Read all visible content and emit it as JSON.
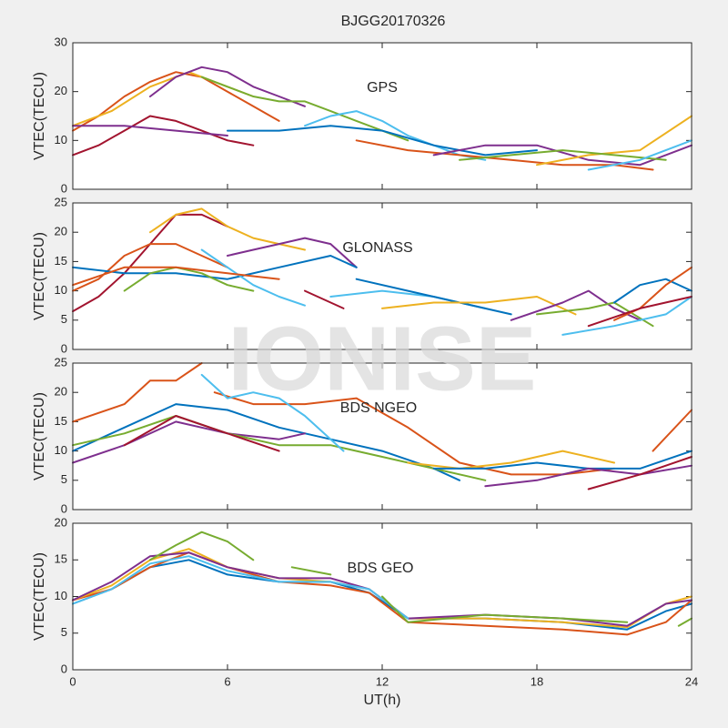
{
  "title": "BJGG20170326",
  "watermark": "IONISE",
  "chart_data": [
    {
      "type": "line",
      "annotation": "GPS",
      "ylabel": "VTEC(TECU)",
      "xlim": [
        0,
        24
      ],
      "xticks": [
        0,
        6,
        12,
        18,
        24
      ],
      "xtick_labels": false,
      "ylim": [
        0,
        30
      ],
      "yticks": [
        0,
        10,
        20,
        30
      ],
      "series": [
        {
          "color": "#D95319",
          "x": [
            0,
            1,
            2,
            3,
            4,
            5,
            6,
            7,
            8
          ],
          "values": [
            12,
            15,
            19,
            22,
            24,
            23,
            20,
            17,
            14
          ]
        },
        {
          "color": "#EDB120",
          "x": [
            0,
            1.5,
            3,
            4.5,
            5.5,
            7
          ],
          "values": [
            13,
            16,
            21,
            24,
            22,
            19
          ]
        },
        {
          "color": "#7E2F8E",
          "x": [
            3,
            4,
            5,
            6,
            7,
            8,
            9
          ],
          "values": [
            19,
            23,
            25,
            24,
            21,
            19,
            17
          ]
        },
        {
          "color": "#77AC30",
          "x": [
            5,
            6,
            7,
            8,
            9,
            10,
            11,
            12,
            13
          ],
          "values": [
            23,
            21,
            19,
            18,
            18,
            16,
            14,
            12,
            10
          ]
        },
        {
          "color": "#4DBEEE",
          "x": [
            9,
            10,
            11,
            12,
            13,
            14,
            15,
            16
          ],
          "values": [
            13,
            15,
            16,
            14,
            11,
            9,
            7,
            6
          ]
        },
        {
          "color": "#0072BD",
          "x": [
            6,
            8,
            10,
            12,
            14,
            16,
            18
          ],
          "values": [
            12,
            12,
            13,
            12,
            9,
            7,
            8
          ]
        },
        {
          "color": "#A2142F",
          "x": [
            0,
            1,
            2,
            3,
            4,
            5,
            6,
            7
          ],
          "values": [
            7,
            9,
            12,
            15,
            14,
            12,
            10,
            9
          ]
        },
        {
          "color": "#D95319",
          "x": [
            11,
            13,
            15,
            17,
            19,
            21,
            22.5
          ],
          "values": [
            10,
            8,
            7,
            6,
            5,
            5,
            4
          ]
        },
        {
          "color": "#7E2F8E",
          "x": [
            14,
            16,
            18,
            20,
            22,
            24
          ],
          "values": [
            7,
            9,
            9,
            6,
            5,
            9
          ]
        },
        {
          "color": "#EDB120",
          "x": [
            18,
            20,
            22,
            24
          ],
          "values": [
            5,
            7,
            8,
            15
          ]
        },
        {
          "color": "#77AC30",
          "x": [
            15,
            17,
            19,
            21,
            23
          ],
          "values": [
            6,
            7,
            8,
            7,
            6
          ]
        },
        {
          "color": "#4DBEEE",
          "x": [
            20,
            22,
            24
          ],
          "values": [
            4,
            6,
            10
          ]
        },
        {
          "color": "#7E2F8E",
          "x": [
            0,
            2,
            4,
            6
          ],
          "values": [
            13,
            13,
            12,
            11
          ]
        }
      ]
    },
    {
      "type": "line",
      "annotation": "GLONASS",
      "ylabel": "VTEC(TECU)",
      "xlim": [
        0,
        24
      ],
      "xticks": [
        0,
        6,
        12,
        18,
        24
      ],
      "xtick_labels": false,
      "ylim": [
        0,
        25
      ],
      "yticks": [
        0,
        5,
        10,
        15,
        20,
        25
      ],
      "series": [
        {
          "color": "#A2142F",
          "x": [
            0,
            1,
            2,
            3,
            4,
            5,
            6
          ],
          "values": [
            6.5,
            9,
            13,
            18,
            23,
            23,
            21
          ]
        },
        {
          "color": "#EDB120",
          "x": [
            3,
            4,
            5,
            6,
            7,
            8,
            9
          ],
          "values": [
            20,
            23,
            24,
            21,
            19,
            18,
            17
          ]
        },
        {
          "color": "#7E2F8E",
          "x": [
            6,
            7,
            8,
            9,
            10,
            11
          ],
          "values": [
            16,
            17,
            18,
            19,
            18,
            14
          ]
        },
        {
          "color": "#D95319",
          "x": [
            0,
            1,
            2,
            3,
            4,
            5,
            6
          ],
          "values": [
            10,
            12,
            16,
            18,
            18,
            16,
            14
          ]
        },
        {
          "color": "#0072BD",
          "x": [
            0,
            2,
            4,
            6,
            8,
            10,
            11
          ],
          "values": [
            14,
            13,
            13,
            12,
            14,
            16,
            14
          ]
        },
        {
          "color": "#4DBEEE",
          "x": [
            5,
            6,
            7,
            8,
            9
          ],
          "values": [
            17,
            14,
            11,
            9,
            7.5
          ]
        },
        {
          "color": "#77AC30",
          "x": [
            2,
            3,
            4,
            5,
            6,
            7
          ],
          "values": [
            10,
            13,
            14,
            13,
            11,
            10
          ]
        },
        {
          "color": "#D95319",
          "x": [
            0,
            2,
            4,
            6,
            8
          ],
          "values": [
            11,
            14,
            14,
            13,
            12
          ]
        },
        {
          "color": "#A2142F",
          "x": [
            9,
            10.5
          ],
          "values": [
            10,
            7
          ]
        },
        {
          "color": "#4DBEEE",
          "x": [
            10,
            12,
            14,
            16
          ],
          "values": [
            9,
            10,
            9,
            7
          ]
        },
        {
          "color": "#0072BD",
          "x": [
            11,
            13,
            15,
            17
          ],
          "values": [
            12,
            10,
            8,
            6
          ]
        },
        {
          "color": "#EDB120",
          "x": [
            12,
            14,
            16,
            18,
            19.5
          ],
          "values": [
            7,
            8,
            8,
            9,
            6
          ]
        },
        {
          "color": "#7E2F8E",
          "x": [
            17,
            19,
            20,
            21,
            22
          ],
          "values": [
            5,
            8,
            10,
            7,
            5
          ]
        },
        {
          "color": "#77AC30",
          "x": [
            18,
            20,
            21,
            22.5
          ],
          "values": [
            6,
            7,
            8,
            4
          ]
        },
        {
          "color": "#4DBEEE",
          "x": [
            19,
            21,
            23,
            24
          ],
          "values": [
            2.5,
            4,
            6,
            9
          ]
        },
        {
          "color": "#0072BD",
          "x": [
            21,
            22,
            23,
            24
          ],
          "values": [
            8,
            11,
            12,
            10
          ]
        },
        {
          "color": "#D95319",
          "x": [
            21,
            22,
            23,
            24
          ],
          "values": [
            5,
            7,
            11,
            14
          ]
        },
        {
          "color": "#A2142F",
          "x": [
            20,
            22,
            24
          ],
          "values": [
            4,
            7,
            9
          ]
        }
      ]
    },
    {
      "type": "line",
      "annotation": "BDS NGEO",
      "ylabel": "VTEC(TECU)",
      "xlim": [
        0,
        24
      ],
      "xticks": [
        0,
        6,
        12,
        18,
        24
      ],
      "xtick_labels": false,
      "ylim": [
        0,
        25
      ],
      "yticks": [
        0,
        5,
        10,
        15,
        20,
        25
      ],
      "series": [
        {
          "color": "#D95319",
          "x": [
            0,
            2,
            3,
            4,
            5
          ],
          "values": [
            15,
            18,
            22,
            22,
            25
          ]
        },
        {
          "color": "#D95319",
          "x": [
            5.5,
            7,
            9,
            11,
            13,
            15,
            17,
            19,
            21
          ],
          "values": [
            20,
            18,
            18,
            19,
            14,
            8,
            6,
            6,
            7
          ]
        },
        {
          "color": "#0072BD",
          "x": [
            0,
            2,
            4,
            6,
            8,
            10,
            12,
            14,
            15
          ],
          "values": [
            10,
            14,
            18,
            17,
            14,
            12,
            10,
            7,
            5
          ]
        },
        {
          "color": "#7E2F8E",
          "x": [
            0,
            2,
            4,
            6,
            8,
            9
          ],
          "values": [
            8,
            11,
            15,
            13,
            12,
            13
          ]
        },
        {
          "color": "#77AC30",
          "x": [
            0,
            2,
            4,
            6,
            8,
            10,
            12,
            14,
            16
          ],
          "values": [
            11,
            13,
            16,
            13,
            11,
            11,
            9,
            7,
            5
          ]
        },
        {
          "color": "#4DBEEE",
          "x": [
            5,
            6,
            7,
            8,
            9,
            10.5
          ],
          "values": [
            23,
            19,
            20,
            19,
            16,
            10
          ]
        },
        {
          "color": "#EDB120",
          "x": [
            13,
            15,
            17,
            19,
            21
          ],
          "values": [
            8,
            7,
            8,
            10,
            8
          ]
        },
        {
          "color": "#0072BD",
          "x": [
            14,
            16,
            18,
            20,
            22,
            24
          ],
          "values": [
            7,
            7,
            8,
            7,
            7,
            10
          ]
        },
        {
          "color": "#7E2F8E",
          "x": [
            16,
            18,
            20,
            22,
            24
          ],
          "values": [
            4,
            5,
            7,
            6,
            7.5
          ]
        },
        {
          "color": "#A2142F",
          "x": [
            20,
            22,
            24
          ],
          "values": [
            3.5,
            6,
            9
          ]
        },
        {
          "color": "#D95319",
          "x": [
            22.5,
            24
          ],
          "values": [
            10,
            17
          ]
        },
        {
          "color": "#A2142F",
          "x": [
            2,
            4,
            6,
            8
          ],
          "values": [
            11,
            16,
            13,
            10
          ]
        }
      ]
    },
    {
      "type": "line",
      "annotation": "BDS GEO",
      "ylabel": "VTEC(TECU)",
      "xlabel": "UT(h)",
      "xlim": [
        0,
        24
      ],
      "xticks": [
        0,
        6,
        12,
        18,
        24
      ],
      "xtick_labels": true,
      "ylim": [
        0,
        20
      ],
      "yticks": [
        0,
        5,
        10,
        15,
        20
      ],
      "series": [
        {
          "color": "#0072BD",
          "x": [
            0,
            1.5,
            3,
            4.5,
            6,
            8,
            10,
            11.5,
            13,
            16,
            19,
            21.5,
            23,
            24
          ],
          "values": [
            9,
            11,
            14,
            15,
            13,
            12,
            12,
            10.5,
            7,
            7,
            6.5,
            5.5,
            8,
            9
          ]
        },
        {
          "color": "#D95319",
          "x": [
            0,
            1.5,
            3,
            4.5,
            6,
            8,
            10,
            11.5,
            13,
            16,
            19,
            21.5,
            23,
            24
          ],
          "values": [
            9.5,
            11,
            14,
            16,
            14,
            12,
            11.5,
            10.5,
            6.5,
            6,
            5.5,
            4.8,
            6.5,
            9.5
          ]
        },
        {
          "color": "#EDB120",
          "x": [
            0,
            1.5,
            3,
            4.5,
            6,
            8,
            10,
            11.5,
            13,
            16,
            19,
            21.5,
            23,
            24
          ],
          "values": [
            9.5,
            11.5,
            15,
            16.5,
            14,
            12.5,
            12,
            11,
            7,
            7,
            6.5,
            5.8,
            9,
            10
          ]
        },
        {
          "color": "#7E2F8E",
          "x": [
            0,
            1.5,
            3,
            4.5,
            6,
            8,
            10,
            11.5,
            13,
            16,
            19,
            21.5,
            23,
            24
          ],
          "values": [
            9.5,
            12,
            15.5,
            16,
            14,
            12.5,
            12.5,
            11,
            7,
            7.5,
            7,
            6,
            9,
            9.5
          ]
        },
        {
          "color": "#4DBEEE",
          "x": [
            0,
            1.5,
            3,
            4.5,
            6,
            8,
            10,
            11.5,
            13
          ],
          "values": [
            9,
            11,
            14.5,
            15.5,
            13.5,
            12,
            12,
            11,
            7
          ]
        },
        {
          "color": "#77AC30",
          "x": [
            3,
            4,
            5,
            6,
            7,
            null,
            8.5,
            10,
            null,
            12,
            13,
            16,
            19,
            21.5,
            null,
            23.5,
            24
          ],
          "values": [
            15,
            17,
            18.8,
            17.5,
            15,
            null,
            14,
            13,
            null,
            10,
            6.5,
            7.5,
            7,
            6.5,
            null,
            6,
            7
          ]
        }
      ]
    }
  ]
}
